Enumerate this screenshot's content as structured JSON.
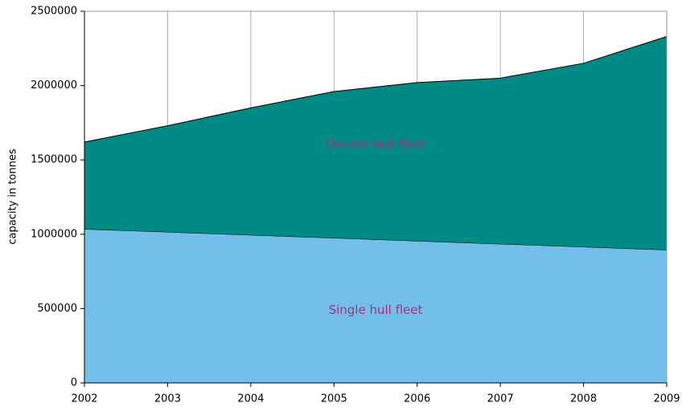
{
  "chart_data": {
    "type": "stacked-area",
    "y_label": "capacity in tonnes",
    "x": [
      2002,
      2003,
      2004,
      2005,
      2006,
      2007,
      2008,
      2009
    ],
    "series": [
      {
        "name": "Single hull fleet",
        "color": "#72c0ea",
        "label_color": "#a0357e",
        "values": [
          1035000,
          1015000,
          995000,
          975000,
          955000,
          935000,
          915000,
          895000
        ]
      },
      {
        "name": "Double hull fleet",
        "color": "#008a86",
        "label_color": "#a0357e",
        "values": [
          585000,
          715000,
          855000,
          985000,
          1065000,
          1115000,
          1235000,
          1435000
        ]
      }
    ],
    "xlim": [
      2002,
      2009
    ],
    "xticks": [
      2002,
      2003,
      2004,
      2005,
      2006,
      2007,
      2008,
      2009
    ],
    "ylim": [
      0,
      2500000
    ],
    "yticks": [
      0,
      500000,
      1000000,
      1500000,
      2000000,
      2500000
    ],
    "grid": "x"
  }
}
